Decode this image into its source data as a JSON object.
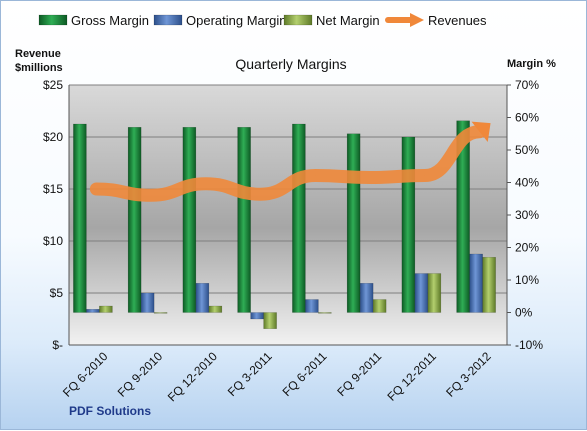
{
  "chart_data": {
    "type": "bar",
    "title": "Quarterly Margins",
    "y_left_label_line1": "Revenue",
    "y_left_label_line2": "$millions",
    "y_right_label": "Margin %",
    "source_label": "PDF Solutions",
    "categories": [
      "FQ 6-2010",
      "FQ 9-2010",
      "FQ 12-2010",
      "FQ 3-2011",
      "FQ 6-2011",
      "FQ 9-2011",
      "FQ 12-2011",
      "FQ 3-2012"
    ],
    "left_axis": {
      "min": 0,
      "max": 25,
      "ticks": [
        0,
        5,
        10,
        15,
        20,
        25
      ],
      "tick_labels": [
        "$-",
        "$5",
        "$10",
        "$15",
        "$20",
        "$25"
      ]
    },
    "right_axis": {
      "min": -10,
      "max": 70,
      "ticks": [
        -10,
        0,
        10,
        20,
        30,
        40,
        50,
        60,
        70
      ],
      "tick_labels": [
        "-10%",
        "0%",
        "10%",
        "20%",
        "30%",
        "40%",
        "50%",
        "60%",
        "70%"
      ]
    },
    "series": [
      {
        "name": "Gross Margin",
        "axis": "right",
        "kind": "bar",
        "color": "#1a8a3c",
        "values": [
          58,
          57,
          57,
          57,
          58,
          55,
          54,
          59
        ]
      },
      {
        "name": "Operating Margin",
        "axis": "right",
        "kind": "bar",
        "color": "#4f7cc8",
        "values": [
          1,
          6,
          9,
          -2,
          4,
          9,
          12,
          18
        ]
      },
      {
        "name": "Net Margin",
        "axis": "right",
        "kind": "bar",
        "color": "#9bbb59",
        "values": [
          2,
          0,
          2,
          -5,
          0,
          4,
          12,
          17
        ]
      },
      {
        "name": "Revenues",
        "axis": "left",
        "kind": "line",
        "color": "#f0883a",
        "values": [
          15.0,
          14.4,
          15.5,
          14.5,
          16.3,
          16.1,
          16.3,
          20.5
        ]
      }
    ],
    "grid": true,
    "legend_position": "top"
  }
}
